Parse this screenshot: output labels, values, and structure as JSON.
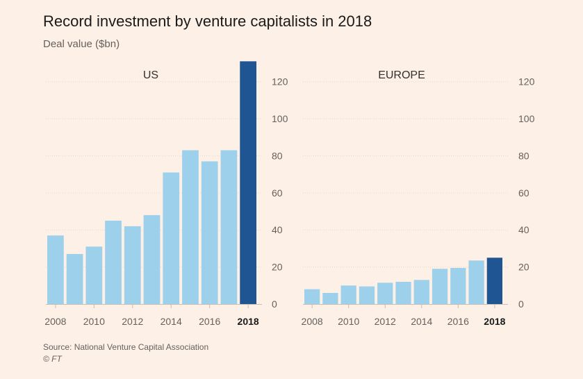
{
  "header": {
    "title": "Record investment by venture capitalists in 2018",
    "subtitle": "Deal value ($bn)"
  },
  "footer": {
    "source": "Source: National Venture Capital Association",
    "credit": "© FT"
  },
  "colors": {
    "bar": "#9dd0ea",
    "highlight": "#1f5592",
    "grid": "#e6d9ce",
    "axis": "#66605c"
  },
  "chart_data": [
    {
      "type": "bar",
      "title": "US",
      "categories": [
        "2008",
        "2009",
        "2010",
        "2011",
        "2012",
        "2013",
        "2014",
        "2015",
        "2016",
        "2017",
        "2018"
      ],
      "values": [
        37,
        27,
        31,
        45,
        42,
        48,
        71,
        83,
        77,
        83,
        131
      ],
      "highlight": "2018",
      "tick_labels": [
        "2008",
        "2010",
        "2012",
        "2014",
        "2016",
        "2018"
      ],
      "ylim": [
        0,
        130
      ],
      "yticks": [
        0,
        20,
        40,
        60,
        80,
        100,
        120
      ],
      "grid": true
    },
    {
      "type": "bar",
      "title": "EUROPE",
      "categories": [
        "2008",
        "2009",
        "2010",
        "2011",
        "2012",
        "2013",
        "2014",
        "2015",
        "2016",
        "2017",
        "2018"
      ],
      "values": [
        8,
        6,
        10,
        9.5,
        11.5,
        12,
        13,
        19,
        19.5,
        23.5,
        25
      ],
      "highlight": "2018",
      "tick_labels": [
        "2008",
        "2010",
        "2012",
        "2014",
        "2016",
        "2018"
      ],
      "ylim": [
        0,
        130
      ],
      "yticks": [
        0,
        20,
        40,
        60,
        80,
        100,
        120
      ],
      "grid": true
    }
  ]
}
